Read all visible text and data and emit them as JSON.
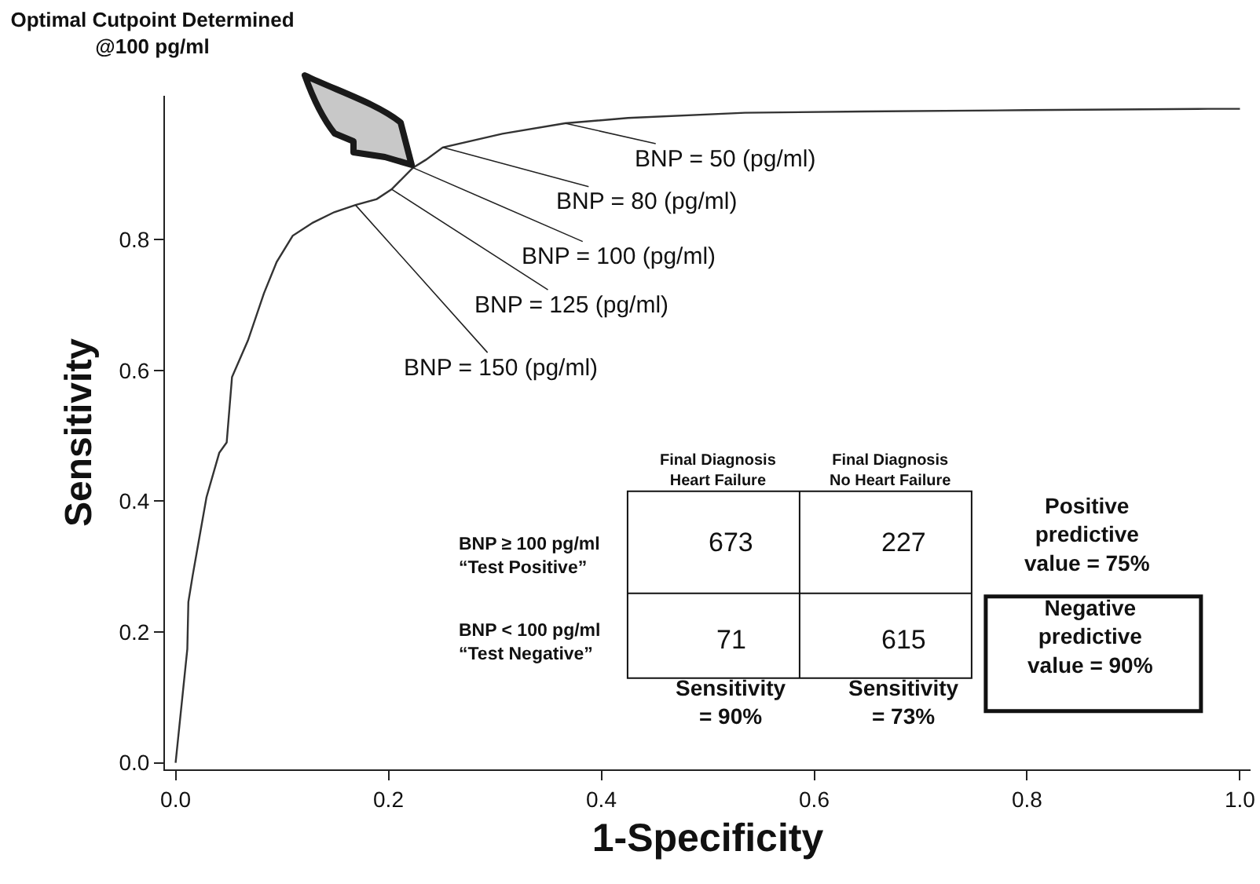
{
  "chart_data": {
    "type": "line",
    "title": "Optimal Cutpoint Determined\n@100 pg/ml",
    "xlabel": "1-Specificity",
    "ylabel": "Sensitivity",
    "x": [
      0,
      0.011,
      0.012,
      0.016,
      0.029,
      0.041,
      0.048,
      0.053,
      0.068,
      0.083,
      0.095,
      0.11,
      0.129,
      0.149,
      0.169,
      0.189,
      0.203,
      0.223,
      0.235,
      0.251,
      0.307,
      0.366,
      0.425,
      0.535,
      0.646,
      0.8,
      0.97,
      1.0
    ],
    "series": [
      {
        "color": "#333333",
        "values": [
          0,
          0.174,
          0.246,
          0.286,
          0.406,
          0.474,
          0.49,
          0.59,
          0.646,
          0.718,
          0.766,
          0.806,
          0.826,
          0.842,
          0.853,
          0.862,
          0.877,
          0.91,
          0.922,
          0.941,
          0.962,
          0.978,
          0.986,
          0.994,
          0.996,
          0.998,
          1.0,
          1.0
        ]
      }
    ],
    "xlim": [
      -0.01,
      1.01
    ],
    "ylim": [
      -0.01,
      1.02
    ],
    "xticks": [
      {
        "value": 0,
        "label": "0.0"
      },
      0.2,
      0.4,
      0.6,
      0.8,
      {
        "value": 1,
        "label": "1.0"
      }
    ],
    "yticks": [
      {
        "value": 0,
        "label": "0.0"
      },
      0.2,
      0.4,
      0.6,
      0.8
    ],
    "grid": false,
    "marker": "none",
    "line_style": "solid",
    "annotations": [
      {
        "text": "BNP = 50 (pg/ml)",
        "x": 0.366,
        "y": 0.978
      },
      {
        "text": "BNP = 80 (pg/ml)",
        "x": 0.251,
        "y": 0.941
      },
      {
        "text": "BNP = 100 (pg/ml)",
        "x": 0.223,
        "y": 0.91
      },
      {
        "text": "BNP = 125 (pg/ml)",
        "x": 0.203,
        "y": 0.877
      },
      {
        "text": "BNP = 150 (pg/ml)",
        "x": 0.169,
        "y": 0.853
      },
      "Final Diagnosis\nHeart Failure",
      "Final Diagnosis\nNo Heart Failure",
      "BNP ≥ 100 pg/ml\n“Test Positive”",
      "BNP < 100 pg/ml\n“Test Negative”",
      "673",
      "227",
      "71",
      "615",
      "Sensitivity\n= 90%",
      "Sensitivity\n= 73%",
      "Positive\npredictive\nvalue = 75%",
      "Negative\npredictive\nvalue = 90%"
    ]
  }
}
